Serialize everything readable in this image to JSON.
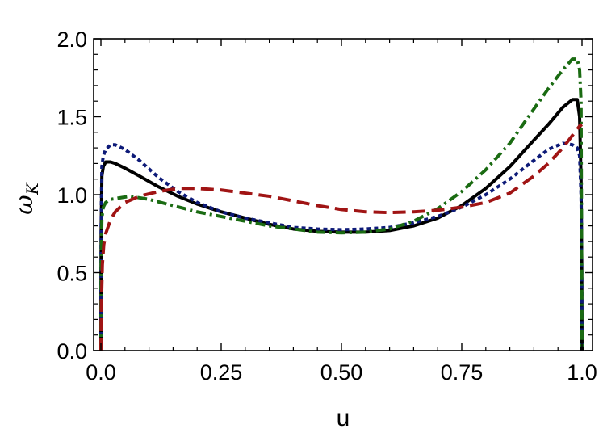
{
  "chart_data": {
    "type": "line",
    "title": "",
    "xlabel": "u",
    "ylabel": "ω",
    "ylabel_subscript": "K",
    "xlim": [
      0,
      1
    ],
    "ylim": [
      0,
      2
    ],
    "x_ticks": [
      {
        "value": 0,
        "label": "0.0"
      },
      {
        "value": 0.25,
        "label": "0.25"
      },
      {
        "value": 0.5,
        "label": "0.50"
      },
      {
        "value": 0.75,
        "label": "0.75"
      },
      {
        "value": 1,
        "label": "1.0"
      }
    ],
    "y_ticks": [
      {
        "value": 0,
        "label": "0.0"
      },
      {
        "value": 0.5,
        "label": "0.5"
      },
      {
        "value": 1,
        "label": "1.0"
      },
      {
        "value": 1.5,
        "label": "1.5"
      },
      {
        "value": 2,
        "label": "2.0"
      }
    ],
    "grid": false,
    "legend": "none",
    "series": [
      {
        "color": "#000000",
        "dash": "solid",
        "x": [
          0,
          0.0005,
          0.002,
          0.005,
          0.01,
          0.02,
          0.03,
          0.05,
          0.08,
          0.12,
          0.16,
          0.2,
          0.25,
          0.3,
          0.35,
          0.4,
          0.45,
          0.5,
          0.55,
          0.6,
          0.65,
          0.7,
          0.75,
          0.8,
          0.85,
          0.9,
          0.93,
          0.96,
          0.98,
          0.99,
          0.995,
          0.998,
          0.9995,
          1
        ],
        "y": [
          0,
          0.75,
          1.12,
          1.18,
          1.21,
          1.21,
          1.2,
          1.17,
          1.12,
          1.05,
          0.99,
          0.94,
          0.89,
          0.85,
          0.81,
          0.78,
          0.765,
          0.76,
          0.76,
          0.77,
          0.8,
          0.85,
          0.93,
          1.04,
          1.18,
          1.35,
          1.45,
          1.56,
          1.61,
          1.61,
          1.5,
          1.1,
          0.5,
          0
        ]
      },
      {
        "color": "#0d1a78",
        "dash": "dotted",
        "x": [
          0,
          0.0005,
          0.002,
          0.005,
          0.01,
          0.02,
          0.03,
          0.05,
          0.08,
          0.12,
          0.16,
          0.2,
          0.25,
          0.3,
          0.35,
          0.4,
          0.45,
          0.5,
          0.55,
          0.6,
          0.65,
          0.7,
          0.75,
          0.8,
          0.85,
          0.9,
          0.93,
          0.96,
          0.98,
          0.99,
          0.995,
          0.998,
          0.9995,
          1
        ],
        "y": [
          0,
          0.8,
          1.18,
          1.25,
          1.29,
          1.32,
          1.32,
          1.29,
          1.22,
          1.11,
          1.02,
          0.95,
          0.89,
          0.85,
          0.82,
          0.79,
          0.78,
          0.775,
          0.78,
          0.79,
          0.82,
          0.86,
          0.92,
          1.0,
          1.1,
          1.22,
          1.29,
          1.33,
          1.32,
          1.3,
          1.25,
          1.0,
          0.5,
          0
        ]
      },
      {
        "color": "#1a6b12",
        "dash": "dashdot",
        "x": [
          0,
          0.0005,
          0.002,
          0.005,
          0.01,
          0.02,
          0.04,
          0.06,
          0.1,
          0.15,
          0.2,
          0.25,
          0.3,
          0.35,
          0.4,
          0.45,
          0.5,
          0.55,
          0.6,
          0.65,
          0.7,
          0.75,
          0.8,
          0.85,
          0.9,
          0.93,
          0.96,
          0.98,
          0.99,
          0.995,
          0.998,
          1
        ],
        "y": [
          0,
          0.55,
          0.85,
          0.92,
          0.95,
          0.97,
          0.98,
          0.99,
          0.97,
          0.93,
          0.89,
          0.86,
          0.83,
          0.8,
          0.78,
          0.76,
          0.755,
          0.76,
          0.78,
          0.83,
          0.91,
          1.02,
          1.16,
          1.33,
          1.55,
          1.68,
          1.8,
          1.87,
          1.87,
          1.8,
          1.6,
          0
        ]
      },
      {
        "color": "#a01414",
        "dash": "dashed",
        "x": [
          0,
          0.001,
          0.003,
          0.006,
          0.01,
          0.02,
          0.03,
          0.05,
          0.08,
          0.12,
          0.16,
          0.2,
          0.25,
          0.3,
          0.35,
          0.4,
          0.45,
          0.5,
          0.55,
          0.6,
          0.65,
          0.7,
          0.75,
          0.8,
          0.85,
          0.9,
          0.93,
          0.96,
          0.98,
          0.99,
          0.995,
          1
        ],
        "y": [
          0,
          0.3,
          0.55,
          0.68,
          0.75,
          0.84,
          0.89,
          0.95,
          0.99,
          1.02,
          1.04,
          1.04,
          1.03,
          1.01,
          0.99,
          0.96,
          0.93,
          0.905,
          0.89,
          0.885,
          0.89,
          0.9,
          0.92,
          0.95,
          1.01,
          1.12,
          1.2,
          1.3,
          1.38,
          1.42,
          1.44,
          1.45
        ]
      }
    ]
  }
}
